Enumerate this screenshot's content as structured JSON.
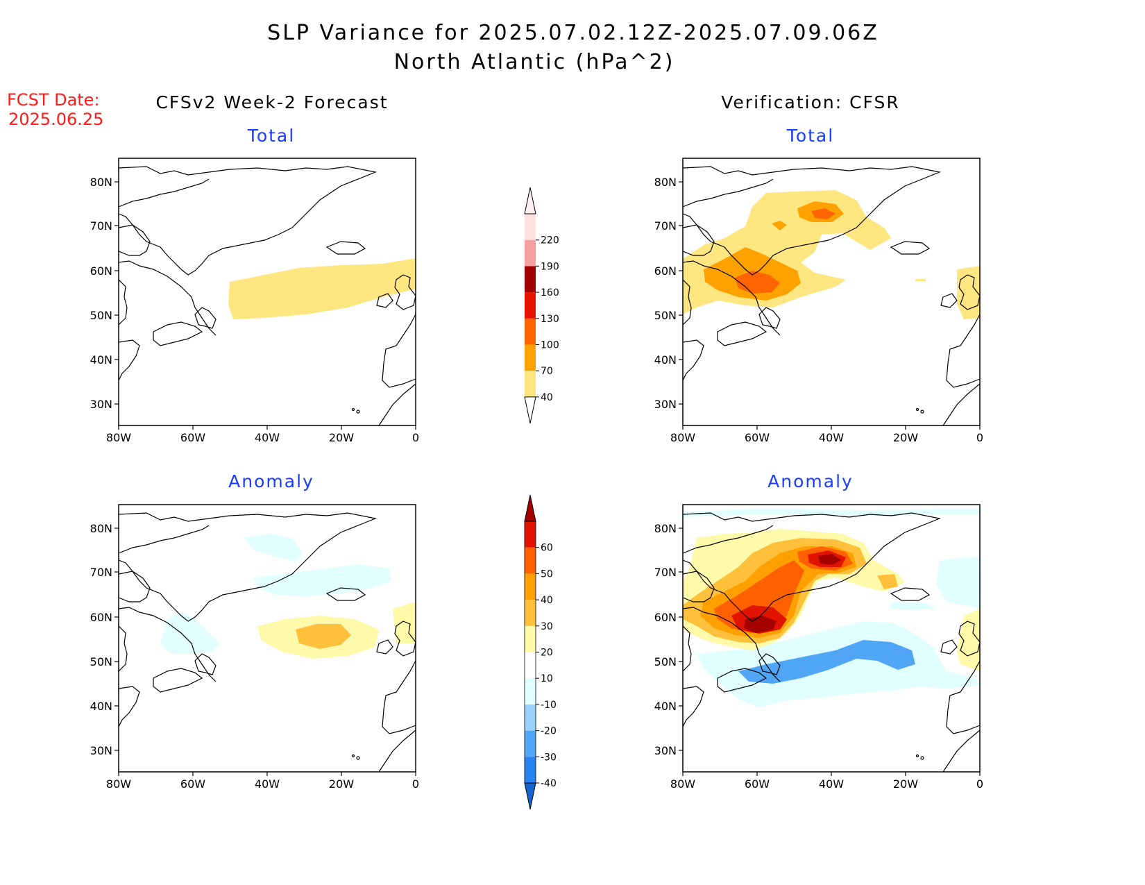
{
  "title": {
    "line1": "SLP Variance for 2025.07.02.12Z-2025.07.09.06Z",
    "line2": "North Atlantic (hPa^2)"
  },
  "fcst": {
    "label": "FCST Date:",
    "date": "2025.06.25"
  },
  "columns": {
    "left": "CFSv2 Week-2 Forecast",
    "right": "Verification: CFSR"
  },
  "panels": {
    "top_left_title": "Total",
    "top_right_title": "Total",
    "bottom_left_title": "Anomaly",
    "bottom_right_title": "Anomaly"
  },
  "map_axes": {
    "lat_labels": [
      "80N",
      "70N",
      "60N",
      "50N",
      "40N",
      "30N"
    ],
    "lon_labels": [
      "80W",
      "60W",
      "40W",
      "20W",
      "0"
    ]
  },
  "colorbars": {
    "total": {
      "levels": [
        "40",
        "70",
        "100",
        "130",
        "160",
        "190",
        "220"
      ],
      "colors": [
        "#ffe680",
        "#ffa200",
        "#ff6400",
        "#e61400",
        "#a00000",
        "#f4a0a0",
        "#ffe0e0"
      ]
    },
    "anomaly": {
      "levels": [
        "-40",
        "-30",
        "-20",
        "-10",
        "10",
        "20",
        "30",
        "40",
        "50",
        "60"
      ],
      "colors": [
        "#1464d2",
        "#2882f0",
        "#50a5f5",
        "#96d2fa",
        "#e1ffff",
        "#ffffff",
        "#fffaaa",
        "#ffc03c",
        "#ffa000",
        "#ff6000",
        "#e11400",
        "#a50000"
      ]
    }
  }
}
